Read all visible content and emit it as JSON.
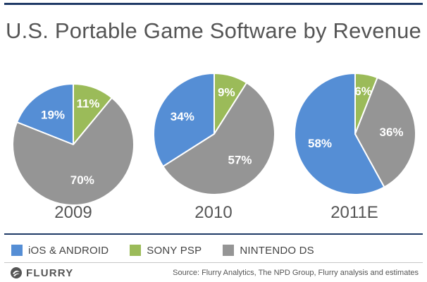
{
  "title": "U.S. Portable Game Software by Revenue",
  "source": "Source: Flurry Analytics, The NPD Group, Flurry analysis  and estimates",
  "logo": {
    "text": "FLURRY"
  },
  "colors": {
    "ios_android": "#558ed5",
    "sony_psp": "#9bbb59",
    "nintendo_ds": "#959595",
    "rule": "#1f3a66"
  },
  "chart_data": {
    "type": "pie",
    "title": "U.S. Portable Game Software by Revenue",
    "legend_position": "bottom",
    "legend": [
      {
        "name": "iOS & ANDROID",
        "color": "#558ed5"
      },
      {
        "name": "SONY PSP",
        "color": "#9bbb59"
      },
      {
        "name": "NINTENDO DS",
        "color": "#959595"
      }
    ],
    "pies": [
      {
        "label": "2009",
        "slices": [
          {
            "series": "iOS & ANDROID",
            "value": 19,
            "label": "19%"
          },
          {
            "series": "SONY PSP",
            "value": 11,
            "label": "11%"
          },
          {
            "series": "NINTENDO DS",
            "value": 70,
            "label": "70%"
          }
        ]
      },
      {
        "label": "2010",
        "slices": [
          {
            "series": "iOS & ANDROID",
            "value": 34,
            "label": "34%"
          },
          {
            "series": "SONY PSP",
            "value": 9,
            "label": "9%"
          },
          {
            "series": "NINTENDO DS",
            "value": 57,
            "label": "57%"
          }
        ]
      },
      {
        "label": "2011E",
        "slices": [
          {
            "series": "iOS & ANDROID",
            "value": 58,
            "label": "58%"
          },
          {
            "series": "SONY PSP",
            "value": 6,
            "label": "6%"
          },
          {
            "series": "NINTENDO DS",
            "value": 36,
            "label": "36%"
          }
        ]
      }
    ]
  }
}
